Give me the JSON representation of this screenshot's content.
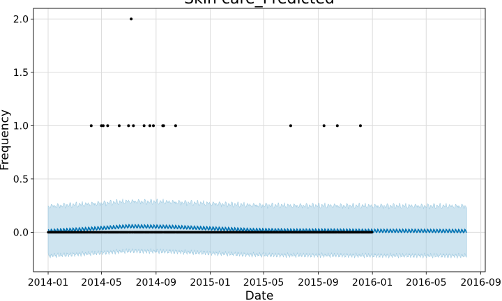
{
  "chart_data": {
    "type": "line",
    "title": "Skin care_Predicted",
    "xlabel": "Date",
    "ylabel": "Frequency",
    "x_ticks": [
      "2014-01",
      "2014-05",
      "2014-09",
      "2015-01",
      "2015-05",
      "2015-09",
      "2016-01",
      "2016-05",
      "2016-09"
    ],
    "y_ticks": [
      "0.0",
      "0.5",
      "1.0",
      "1.5",
      "2.0"
    ],
    "xlim": [
      "2013-11-29",
      "2016-09-11"
    ],
    "ylim": [
      -0.37,
      2.1
    ],
    "grid": true,
    "colors": {
      "forecast_line": "#0072B2",
      "uncertainty_band": "#9ecae1",
      "observed_points": "#000000"
    },
    "observed_range": [
      "2014-01-01",
      "2015-12-31"
    ],
    "forecast_range": [
      "2014-01-01",
      "2016-07-31"
    ],
    "observed_nonzero": [
      {
        "date": "2014-04-08",
        "value": 1
      },
      {
        "date": "2014-05-01",
        "value": 1
      },
      {
        "date": "2014-05-05",
        "value": 1
      },
      {
        "date": "2014-05-15",
        "value": 1
      },
      {
        "date": "2014-06-10",
        "value": 1
      },
      {
        "date": "2014-07-01",
        "value": 1
      },
      {
        "date": "2014-07-07",
        "value": 2
      },
      {
        "date": "2014-07-12",
        "value": 1
      },
      {
        "date": "2014-08-05",
        "value": 1
      },
      {
        "date": "2014-08-18",
        "value": 1
      },
      {
        "date": "2014-08-26",
        "value": 1
      },
      {
        "date": "2014-09-16",
        "value": 1
      },
      {
        "date": "2014-09-18",
        "value": 1
      },
      {
        "date": "2014-10-15",
        "value": 1
      },
      {
        "date": "2015-07-01",
        "value": 1
      },
      {
        "date": "2015-09-14",
        "value": 1
      },
      {
        "date": "2015-10-14",
        "value": 1
      },
      {
        "date": "2015-12-05",
        "value": 1
      }
    ],
    "series": [
      {
        "name": "",
        "x": [
          "2014-01-01",
          "2014-04-01",
          "2014-07-01",
          "2014-10-01",
          "2015-01-01",
          "2015-04-01",
          "2015-07-01",
          "2015-10-01",
          "2016-01-01",
          "2016-04-01",
          "2016-07-31"
        ],
        "values": [
          0.01,
          0.03,
          0.055,
          0.05,
          0.035,
          0.02,
          0.015,
          0.015,
          0.012,
          0.012,
          0.01
        ],
        "lower": [
          -0.21,
          -0.19,
          -0.165,
          -0.17,
          -0.185,
          -0.2,
          -0.205,
          -0.205,
          -0.208,
          -0.208,
          -0.21
        ],
        "upper": [
          0.23,
          0.25,
          0.275,
          0.27,
          0.255,
          0.24,
          0.235,
          0.235,
          0.232,
          0.232,
          0.23
        ]
      }
    ]
  }
}
